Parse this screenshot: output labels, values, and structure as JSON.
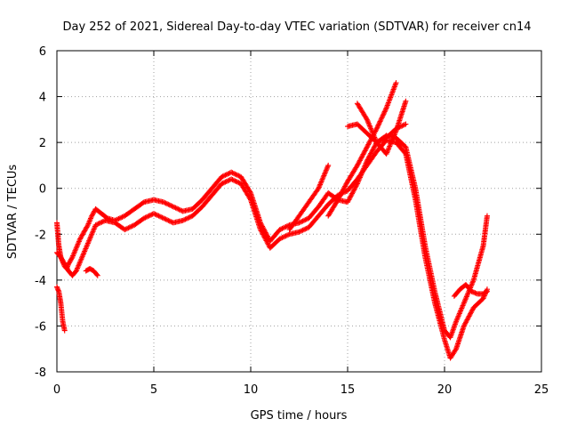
{
  "chart_data": {
    "type": "scatter",
    "title": "Day 252 of 2021, Sidereal Day-to-day VTEC variation (SDTVAR) for receiver cn14",
    "xlabel": "GPS time / hours",
    "ylabel": "SDTVAR / TECUs",
    "xlim": [
      0,
      25
    ],
    "ylim": [
      -8,
      6
    ],
    "xticks": [
      0,
      5,
      10,
      15,
      20,
      25
    ],
    "yticks": [
      -8,
      -6,
      -4,
      -2,
      0,
      2,
      4,
      6
    ],
    "grid": true,
    "marker": "plus",
    "color": "#ff0000",
    "series": [
      {
        "x": [
          0.0,
          0.1,
          0.2,
          0.3,
          0.4,
          0.5,
          0.6,
          0.8,
          1.0,
          1.2,
          1.4,
          1.6,
          1.8,
          2.0,
          2.3,
          2.6,
          3.0,
          3.5,
          4.0,
          4.5,
          5.0,
          5.5,
          6.0,
          6.5,
          7.0,
          7.5,
          8.0,
          8.5,
          9.0,
          9.5,
          10.0,
          10.5,
          11.0,
          11.5,
          12.0,
          12.5,
          13.0,
          13.5,
          14.0,
          14.5,
          15.0,
          15.5,
          16.0,
          16.5,
          17.0,
          17.5,
          18.0,
          18.5,
          19.0,
          19.5,
          20.0,
          20.3,
          20.6,
          21.0,
          21.5,
          22.0,
          22.2
        ],
        "y": [
          -1.5,
          -2.5,
          -3.0,
          -3.2,
          -3.4,
          -3.5,
          -3.3,
          -3.0,
          -2.6,
          -2.2,
          -1.9,
          -1.6,
          -1.2,
          -0.9,
          -1.1,
          -1.3,
          -1.4,
          -1.2,
          -0.9,
          -0.6,
          -0.5,
          -0.6,
          -0.8,
          -1.0,
          -0.9,
          -0.5,
          0.0,
          0.5,
          0.7,
          0.5,
          -0.2,
          -1.5,
          -2.3,
          -1.8,
          -1.6,
          -1.5,
          -1.3,
          -0.8,
          -0.2,
          -0.5,
          -0.6,
          0.2,
          1.2,
          2.0,
          2.3,
          2.2,
          1.8,
          0.0,
          -2.5,
          -4.5,
          -6.2,
          -6.5,
          -5.8,
          -5.0,
          -4.0,
          -2.5,
          -1.2
        ]
      },
      {
        "x": [
          0.0,
          0.2,
          0.4,
          0.6,
          0.8,
          1.0,
          1.2,
          1.4,
          1.6,
          1.8,
          2.0,
          2.5,
          3.0,
          3.5,
          4.0,
          4.5,
          5.0,
          5.5,
          6.0,
          6.5,
          7.0,
          7.5,
          8.0,
          8.5,
          9.0,
          9.5,
          10.0,
          10.5,
          11.0,
          11.5,
          12.0,
          12.5,
          13.0,
          13.5,
          14.0,
          14.5,
          15.0,
          15.5,
          16.0,
          16.5,
          17.0,
          17.5,
          18.0,
          18.5,
          19.0,
          19.5,
          20.0,
          20.3,
          20.6,
          21.0,
          21.5,
          22.0,
          22.2
        ],
        "y": [
          -2.8,
          -3.0,
          -3.3,
          -3.6,
          -3.8,
          -3.6,
          -3.2,
          -2.8,
          -2.4,
          -2.0,
          -1.6,
          -1.4,
          -1.5,
          -1.8,
          -1.6,
          -1.3,
          -1.1,
          -1.3,
          -1.5,
          -1.4,
          -1.2,
          -0.8,
          -0.3,
          0.2,
          0.4,
          0.2,
          -0.5,
          -1.8,
          -2.6,
          -2.2,
          -2.0,
          -1.9,
          -1.7,
          -1.2,
          -0.7,
          -0.3,
          -0.1,
          0.4,
          1.0,
          1.6,
          2.1,
          2.0,
          1.5,
          -0.5,
          -3.0,
          -5.0,
          -6.6,
          -7.4,
          -7.0,
          -6.0,
          -5.2,
          -4.8,
          -4.4
        ]
      },
      {
        "x": [
          0.0,
          0.1,
          0.2,
          0.3,
          0.4
        ],
        "y": [
          -4.3,
          -4.5,
          -5.0,
          -5.8,
          -6.2
        ]
      },
      {
        "x": [
          1.5,
          1.7,
          1.9,
          2.1
        ],
        "y": [
          -3.6,
          -3.5,
          -3.6,
          -3.8
        ]
      },
      {
        "x": [
          14.0,
          14.5,
          15.0,
          15.5,
          16.0,
          16.5,
          17.0,
          17.5
        ],
        "y": [
          -1.2,
          -0.5,
          0.3,
          1.0,
          1.8,
          2.6,
          3.5,
          4.6
        ]
      },
      {
        "x": [
          15.0,
          15.5,
          16.0,
          16.5,
          17.0,
          17.5,
          18.0
        ],
        "y": [
          2.7,
          2.8,
          2.4,
          2.0,
          2.2,
          2.6,
          2.8
        ]
      },
      {
        "x": [
          15.5,
          16.0,
          16.5,
          17.0,
          17.5,
          18.0
        ],
        "y": [
          3.7,
          3.0,
          2.0,
          1.5,
          2.5,
          3.8
        ]
      },
      {
        "x": [
          12.0,
          12.5,
          13.0,
          13.5,
          14.0
        ],
        "y": [
          -1.8,
          -1.2,
          -0.6,
          0.0,
          1.0
        ]
      },
      {
        "x": [
          20.5,
          20.8,
          21.1,
          21.4,
          21.7,
          22.0,
          22.2
        ],
        "y": [
          -4.7,
          -4.4,
          -4.2,
          -4.5,
          -4.6,
          -4.6,
          -4.5
        ]
      }
    ]
  }
}
